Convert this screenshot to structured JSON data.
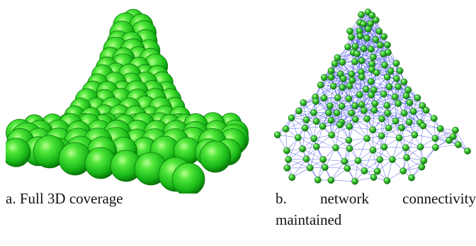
{
  "figure": {
    "panel_a": {
      "caption": "a. Full 3D coverage",
      "sphere_color": "#1ec81e"
    },
    "panel_b": {
      "caption_line1_words": [
        "b.",
        "network",
        "connectivity"
      ],
      "caption_line2": "maintained",
      "node_color": "#1e9c1e",
      "edge_color": "#3a46e6"
    }
  }
}
